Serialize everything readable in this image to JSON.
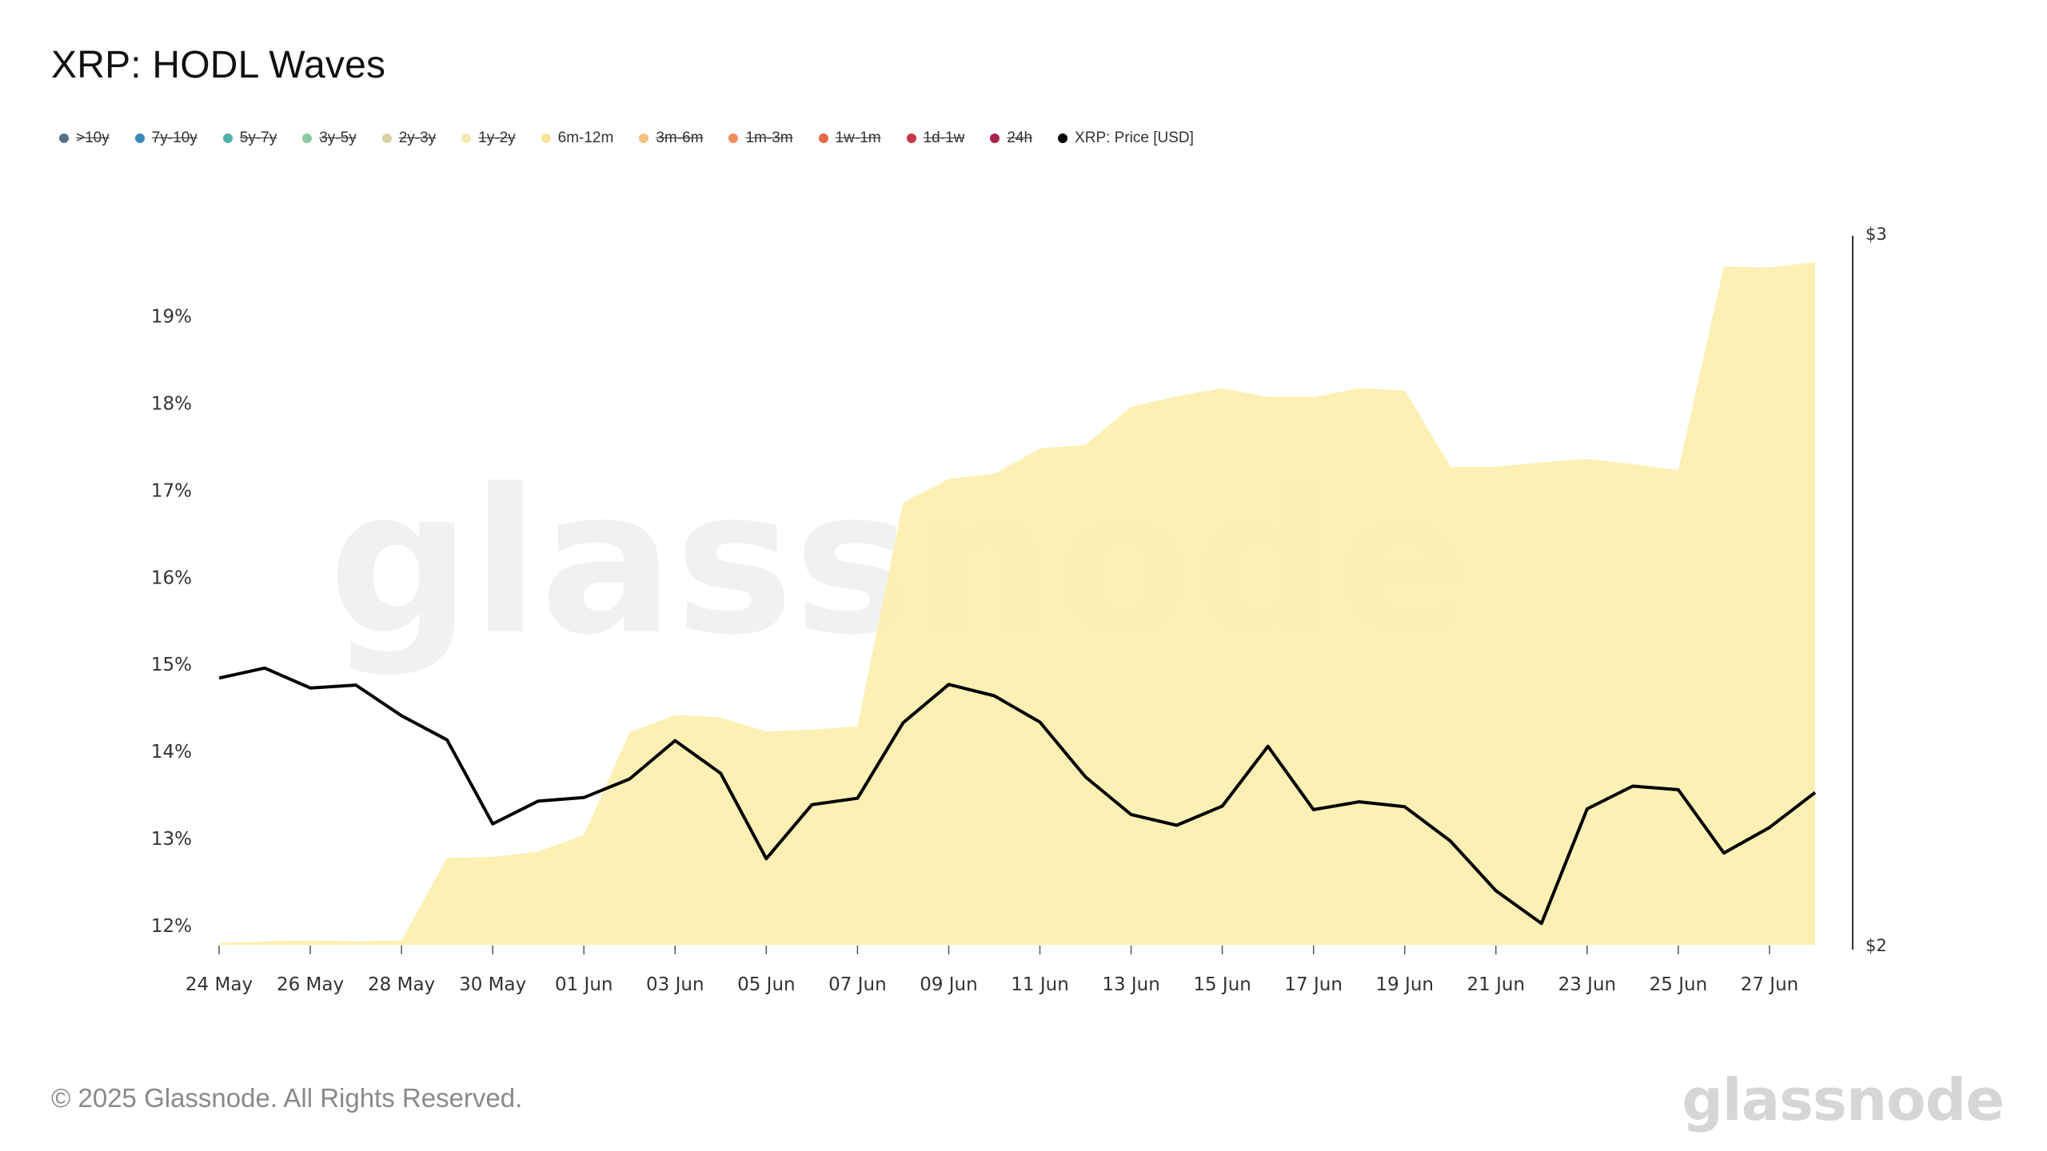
{
  "title": "XRP: HODL Waves",
  "legend": [
    {
      "label": ">10y",
      "color": "#5b6f8c",
      "hidden": true
    },
    {
      "label": "7y-10y",
      "color": "#3d86b8",
      "hidden": true
    },
    {
      "label": "5y-7y",
      "color": "#4fb3ad",
      "hidden": true
    },
    {
      "label": "3y-5y",
      "color": "#8cc9a0",
      "hidden": true
    },
    {
      "label": "2y-3y",
      "color": "#d8d3a2",
      "hidden": true
    },
    {
      "label": "1y-2y",
      "color": "#f5ebae",
      "hidden": true
    },
    {
      "label": "6m-12m",
      "color": "#f8e49a",
      "hidden": false
    },
    {
      "label": "3m-6m",
      "color": "#f3c27c",
      "hidden": true
    },
    {
      "label": "1m-3m",
      "color": "#f08f5e",
      "hidden": true
    },
    {
      "label": "1w-1m",
      "color": "#e3684a",
      "hidden": true
    },
    {
      "label": "1d-1w",
      "color": "#c9374a",
      "hidden": true
    },
    {
      "label": "24h",
      "color": "#a8224a",
      "hidden": true
    },
    {
      "label": "XRP: Price [USD]",
      "color": "#000000",
      "hidden": false
    }
  ],
  "chart_data": {
    "type": "area",
    "x": [
      "24 May",
      "25 May",
      "26 May",
      "27 May",
      "28 May",
      "29 May",
      "30 May",
      "31 May",
      "01 Jun",
      "02 Jun",
      "03 Jun",
      "04 Jun",
      "05 Jun",
      "06 Jun",
      "07 Jun",
      "08 Jun",
      "09 Jun",
      "10 Jun",
      "11 Jun",
      "12 Jun",
      "13 Jun",
      "14 Jun",
      "15 Jun",
      "16 Jun",
      "17 Jun",
      "18 Jun",
      "19 Jun",
      "20 Jun",
      "21 Jun",
      "22 Jun",
      "23 Jun",
      "24 Jun",
      "25 Jun",
      "26 Jun",
      "27 Jun",
      "28 Jun"
    ],
    "x_tick_labels": [
      "24 May",
      "26 May",
      "28 May",
      "30 May",
      "01 Jun",
      "03 Jun",
      "05 Jun",
      "07 Jun",
      "09 Jun",
      "11 Jun",
      "13 Jun",
      "15 Jun",
      "17 Jun",
      "19 Jun",
      "21 Jun",
      "23 Jun",
      "25 Jun",
      "27 Jun"
    ],
    "series": [
      {
        "name": "6m-12m",
        "axis": "left",
        "color": "#fcefae",
        "values": [
          11.8,
          11.82,
          11.83,
          11.82,
          11.83,
          12.78,
          12.79,
          12.85,
          13.04,
          14.22,
          14.42,
          14.39,
          14.23,
          14.25,
          14.29,
          16.86,
          17.13,
          17.19,
          17.48,
          17.52,
          17.96,
          18.08,
          18.17,
          18.07,
          18.07,
          18.17,
          18.15,
          17.27,
          17.27,
          17.32,
          17.36,
          17.3,
          17.23,
          19.57,
          19.56,
          19.62
        ]
      },
      {
        "name": "XRP: Price [USD]",
        "axis": "right",
        "color": "#000000",
        "values": [
          2.375,
          2.389,
          2.361,
          2.365,
          2.322,
          2.288,
          2.17,
          2.202,
          2.207,
          2.233,
          2.287,
          2.241,
          2.121,
          2.197,
          2.206,
          2.312,
          2.366,
          2.35,
          2.313,
          2.236,
          2.183,
          2.168,
          2.195,
          2.279,
          2.19,
          2.201,
          2.194,
          2.146,
          2.076,
          2.03,
          2.191,
          2.223,
          2.218,
          2.129,
          2.165,
          2.214
        ]
      }
    ],
    "y_left": {
      "min": 11.78,
      "max": 19.95,
      "ticks": [
        12,
        13,
        14,
        15,
        16,
        17,
        18,
        19
      ],
      "tick_labels": [
        "12%",
        "13%",
        "14%",
        "15%",
        "16%",
        "17%",
        "18%",
        "19%"
      ]
    },
    "y_right": {
      "min": 2,
      "max": 3,
      "ticks": [
        2,
        3
      ],
      "tick_labels": [
        "$2",
        "$3"
      ]
    },
    "grid": false,
    "legend_position": "top-left"
  },
  "watermark": "glassnode",
  "footer": {
    "copyright": "© 2025 Glassnode. All Rights Reserved.",
    "logo": "glassnode"
  }
}
